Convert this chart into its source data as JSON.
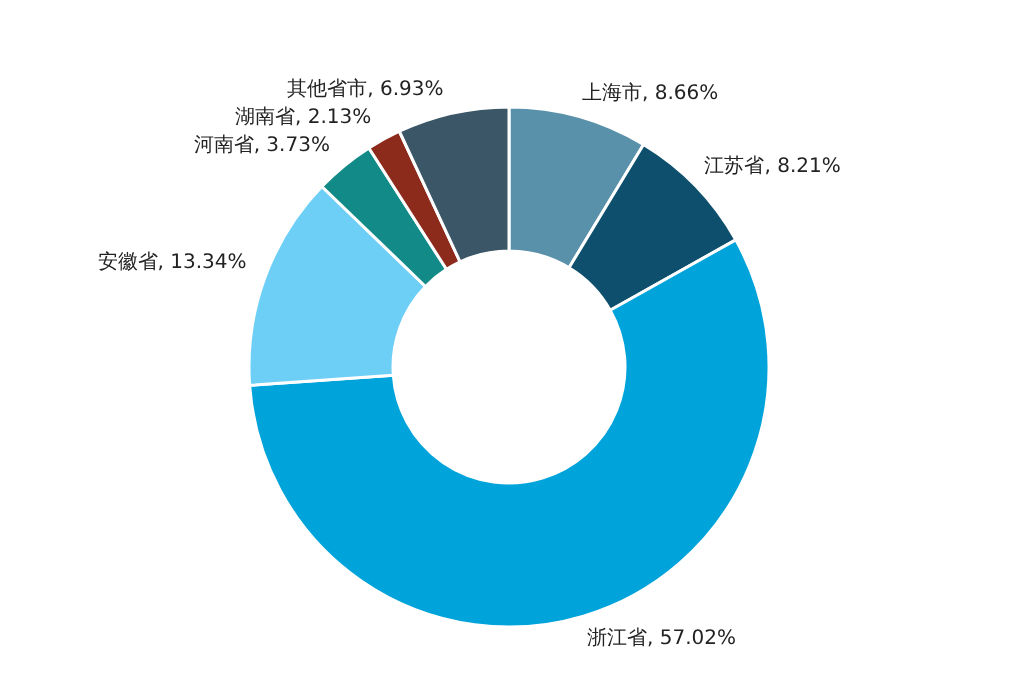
{
  "chart_data": {
    "type": "donut",
    "categories": [
      "上海市",
      "江苏省",
      "浙江省",
      "安徽省",
      "河南省",
      "湖南省",
      "其他省市"
    ],
    "values": [
      8.66,
      8.21,
      57.02,
      13.34,
      3.73,
      2.13,
      6.93
    ],
    "colors": [
      "#5a91aa",
      "#0d4f6c",
      "#00a3da",
      "#6dcff6",
      "#128a87",
      "#8c2a1c",
      "#3a5667"
    ],
    "value_labels": [
      ", 8.66%",
      ", 8.21%",
      ", 57.02%",
      ", 13.34%",
      ", 3.73%",
      ", 2.13%",
      ", 6.93%"
    ]
  }
}
